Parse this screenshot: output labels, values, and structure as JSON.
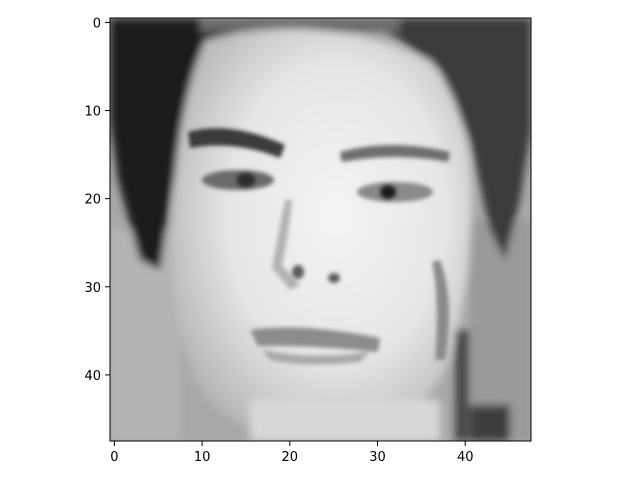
{
  "chart_data": {
    "type": "heatmap",
    "title": "",
    "xlabel": "",
    "ylabel": "",
    "colormap": "gray",
    "grid": false,
    "image_size": [
      48,
      48
    ],
    "xlim": [
      -0.5,
      47.5
    ],
    "ylim": [
      47.5,
      -0.5
    ],
    "x_ticks": [
      0,
      10,
      20,
      30,
      40
    ],
    "y_ticks": [
      0,
      10,
      20,
      30,
      40
    ],
    "x_tick_labels": [
      "0",
      "10",
      "20",
      "30",
      "40"
    ],
    "y_tick_labels": [
      "0",
      "10",
      "20",
      "30",
      "40"
    ],
    "content": "grayscale 48x48 pixel image of a human face"
  }
}
